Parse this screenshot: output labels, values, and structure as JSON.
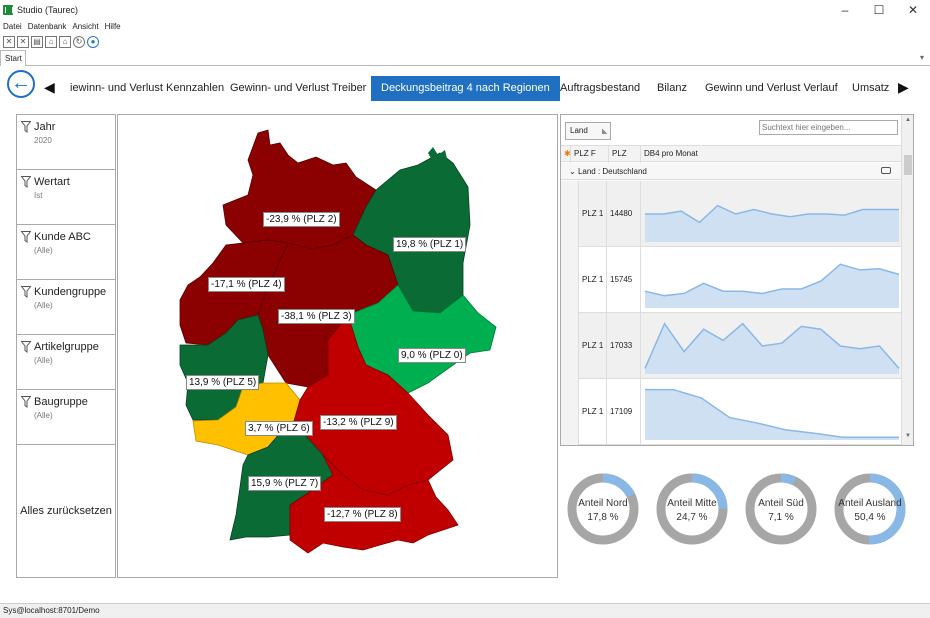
{
  "window": {
    "title": "Studio (Taurec)"
  },
  "menu": [
    "Datei",
    "Datenbank",
    "Ansicht",
    "Hilfe"
  ],
  "doc_tab": "Start",
  "nav": {
    "tabs": [
      "iewinn- und Verlust Kennzahlen",
      "Gewinn- und Verlust Treiber",
      "Deckungsbeitrag 4 nach Regionen",
      "Auftragsbestand",
      "Bilanz",
      "Gewinn und Verlust Verlauf",
      "Umsatz"
    ],
    "active": "Deckungsbeitrag 4 nach Regionen"
  },
  "filters": [
    {
      "label": "Jahr",
      "value": "2020"
    },
    {
      "label": "Wertart",
      "value": "Ist"
    },
    {
      "label": "Kunde ABC",
      "value": "(Alle)"
    },
    {
      "label": "Kundengruppe",
      "value": "(Alle)"
    },
    {
      "label": "Artikelgruppe",
      "value": "(Alle)"
    },
    {
      "label": "Baugruppe",
      "value": "(Alle)"
    }
  ],
  "reset_label": "Alles zurücksetzen",
  "map": {
    "colors": {
      "dark_red": "#8b0000",
      "red": "#c00000",
      "dark_green": "#0b6b34",
      "green": "#00b050",
      "yellow": "#ffc000"
    },
    "labels": [
      {
        "text": "-23,9 % (PLZ 2)"
      },
      {
        "text": "19,8 % (PLZ 1)"
      },
      {
        "text": "-17,1 % (PLZ 4)"
      },
      {
        "text": "-38,1 % (PLZ 3)"
      },
      {
        "text": "9,0 % (PLZ 0)"
      },
      {
        "text": "13,9 % (PLZ 5)"
      },
      {
        "text": "3,7 % (PLZ 6)"
      },
      {
        "text": "-13,2 % (PLZ 9)"
      },
      {
        "text": "15,9 % (PLZ 7)"
      },
      {
        "text": "-12,7 % (PLZ 8)"
      }
    ]
  },
  "grid": {
    "group_chip": "Land",
    "search_placeholder": "Suchtext hier eingeben...",
    "columns": [
      "PLZ F",
      "PLZ",
      "DB4 pro Monat"
    ],
    "group_row": "Land : Deutschland",
    "rows": [
      {
        "plzf": "PLZ 1",
        "plz": "14480",
        "spark": [
          0.5,
          0.5,
          0.55,
          0.35,
          0.65,
          0.5,
          0.58,
          0.5,
          0.45,
          0.5,
          0.5,
          0.48,
          0.58,
          0.58,
          0.58
        ]
      },
      {
        "plzf": "PLZ 1",
        "plz": "15745",
        "spark": [
          0.3,
          0.22,
          0.26,
          0.44,
          0.3,
          0.3,
          0.26,
          0.34,
          0.34,
          0.48,
          0.78,
          0.68,
          0.7,
          0.6
        ]
      },
      {
        "plzf": "PLZ 1",
        "plz": "17033",
        "spark": [
          0.1,
          0.9,
          0.4,
          0.8,
          0.6,
          0.9,
          0.5,
          0.55,
          0.85,
          0.8,
          0.5,
          0.45,
          0.5,
          0.1
        ]
      },
      {
        "plzf": "PLZ 1",
        "plz": "17109",
        "spark": [
          0.9,
          0.9,
          0.75,
          0.4,
          0.3,
          0.18,
          0.12,
          0.05,
          0.05,
          0.05
        ]
      }
    ]
  },
  "donuts": [
    {
      "label": "Anteil Nord",
      "value": "17,8 %",
      "share": 0.178
    },
    {
      "label": "Anteil Mitte",
      "value": "24,7 %",
      "share": 0.247
    },
    {
      "label": "Anteil Süd",
      "value": "7,1 %",
      "share": 0.071
    },
    {
      "label": "Anteil Ausland",
      "value": "50,4 %",
      "share": 0.504
    }
  ],
  "donut_colors": {
    "fill": "#8ab8e6",
    "rest": "#a6a6a6"
  },
  "status": "Sys@localhost:8701/Demo"
}
